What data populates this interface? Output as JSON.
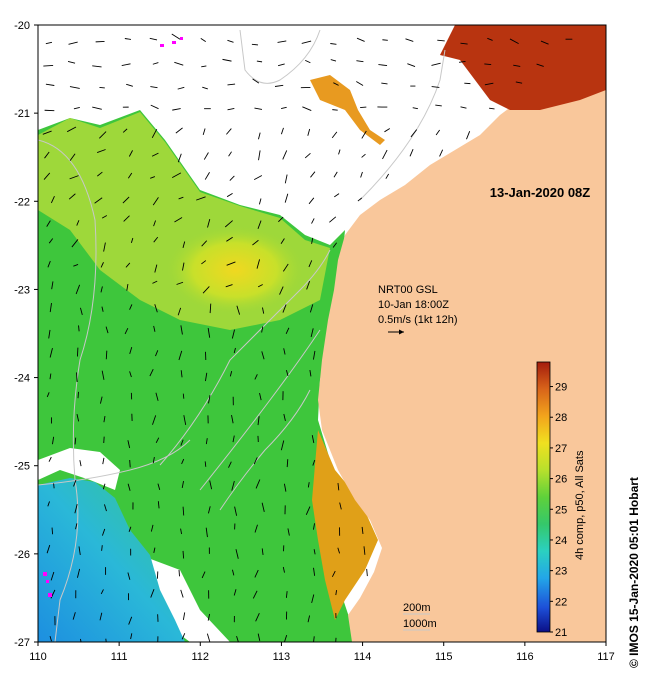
{
  "map": {
    "date_label": "13-Jan-2020 08Z",
    "current_info": {
      "model": "NRT00 GSL",
      "time": "10-Jan 18:00Z",
      "scale": "0.5m/s (1kt 12h)"
    },
    "contour_legend": {
      "shallow": "200m",
      "deep": "1000m"
    },
    "credit": "© IMOS 15-Jan-2020 05:01 Hobart",
    "lat_ticks": [
      "-20",
      "-21",
      "-22",
      "-23",
      "-24",
      "-25",
      "-26",
      "-27"
    ],
    "lon_ticks": [
      "110",
      "111",
      "112",
      "113",
      "114",
      "115",
      "116",
      "117"
    ],
    "colorbar": {
      "label": "4h comp, p50, All Sats",
      "ticks": [
        "29",
        "28",
        "27",
        "26",
        "25",
        "24",
        "23",
        "22",
        "21"
      ],
      "range": [
        21,
        29.8
      ],
      "colors": [
        "#0b0f86",
        "#1d4fd8",
        "#23a6e8",
        "#2bd0c0",
        "#35c86a",
        "#5fd13a",
        "#b8e02c",
        "#f0e020",
        "#f2a41c",
        "#d8641a",
        "#a41c0c"
      ]
    },
    "colors": {
      "land": "#f9c79b",
      "no_data": "#ffffff",
      "contour": "#c8c8c8",
      "arrow": "#000000",
      "missing_pixel": "#ff00ff"
    }
  }
}
